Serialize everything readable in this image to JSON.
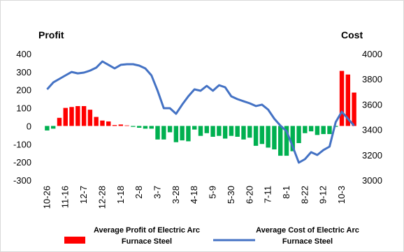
{
  "chart_data": {
    "type": "combo",
    "y_label": "Profit",
    "y2_label": "Cost",
    "categories": [
      "10-26",
      null,
      null,
      "11-16",
      null,
      null,
      "12-7",
      null,
      null,
      "12-28",
      null,
      null,
      "1-18",
      null,
      null,
      "2-8",
      null,
      null,
      "3-7",
      null,
      null,
      "3-28",
      null,
      null,
      "4-18",
      null,
      null,
      "5-9",
      null,
      null,
      "5-30",
      null,
      null,
      "6-20",
      null,
      null,
      "7-11",
      null,
      null,
      "8-1",
      null,
      null,
      "8-22",
      null,
      null,
      "9-12",
      null,
      null,
      "10-3",
      null,
      null
    ],
    "series": [
      {
        "name": "Average Profit of Electric Arc Furnace Steel",
        "type": "bar",
        "color": "#ff0000",
        "negative_color": "#00b050",
        "values": [
          -25,
          -15,
          45,
          100,
          105,
          110,
          110,
          90,
          50,
          30,
          25,
          5,
          8,
          3,
          -5,
          -10,
          -15,
          -15,
          -75,
          -75,
          -35,
          -90,
          -80,
          -85,
          -20,
          -55,
          -40,
          -60,
          -55,
          -70,
          -55,
          -60,
          -75,
          -65,
          -110,
          -100,
          -120,
          -130,
          -165,
          -165,
          -140,
          -95,
          -40,
          -30,
          -50,
          -45,
          -45,
          -5,
          305,
          285,
          185
        ]
      },
      {
        "name": "Average Cost of Electric Arc Furnace Steel",
        "type": "line",
        "color": "#4472c4",
        "axis": "y2",
        "values": [
          3718,
          3773,
          3801,
          3829,
          3856,
          3845,
          3851,
          3867,
          3890,
          3939,
          3912,
          3884,
          3912,
          3917,
          3917,
          3906,
          3884,
          3829,
          3707,
          3569,
          3569,
          3525,
          3597,
          3663,
          3718,
          3707,
          3746,
          3707,
          3751,
          3735,
          3663,
          3641,
          3624,
          3608,
          3586,
          3597,
          3558,
          3486,
          3431,
          3387,
          3265,
          3138,
          3166,
          3221,
          3199,
          3238,
          3265,
          3459,
          3541,
          3486,
          3431
        ]
      }
    ],
    "ylim": [
      -300,
      400
    ],
    "yticks": [
      -300,
      -200,
      -100,
      0,
      100,
      200,
      300,
      400
    ],
    "y2lim": [
      3000,
      4000
    ],
    "y2ticks": [
      3000,
      3200,
      3400,
      3600,
      3800,
      4000
    ],
    "grid": false
  }
}
